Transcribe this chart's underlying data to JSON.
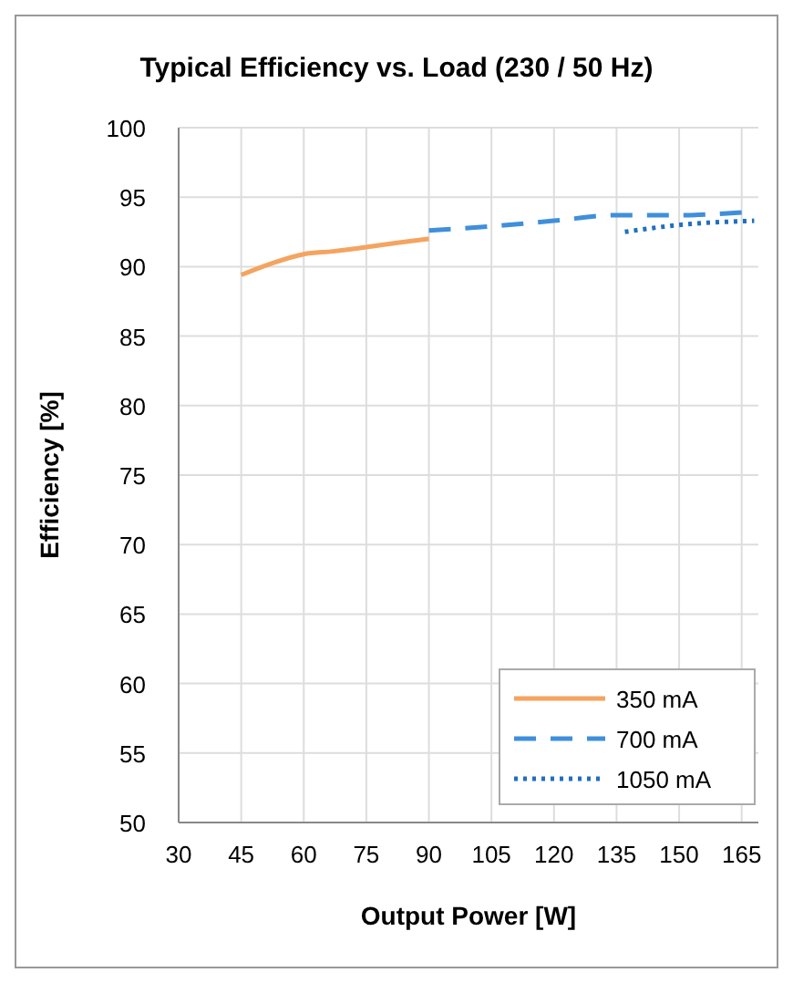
{
  "chart_data": {
    "type": "line",
    "title": "Typical Efficiency vs. Load (230 / 50 Hz)",
    "xlabel": "Output Power [W]",
    "ylabel": "Efficiency [%]",
    "xlim": [
      30,
      169
    ],
    "xticks": [
      30,
      45,
      60,
      75,
      90,
      105,
      120,
      135,
      150,
      165
    ],
    "ylim": [
      50,
      100
    ],
    "yticks": [
      50,
      55,
      60,
      65,
      70,
      75,
      80,
      85,
      90,
      95,
      100
    ],
    "grid": true,
    "legend": "bottom right",
    "marker": "none",
    "series": [
      {
        "name": "350 mA",
        "color": "#f4a460",
        "line_style": "solid",
        "x": [
          45,
          52,
          60,
          67,
          75,
          82,
          90
        ],
        "values": [
          89.4,
          90.2,
          90.9,
          91.1,
          91.4,
          91.7,
          92.0
        ]
      },
      {
        "name": "700 mA",
        "color": "#3f8fdc",
        "line_style": "dashed",
        "x": [
          90,
          105,
          120,
          135,
          150,
          165
        ],
        "values": [
          92.6,
          92.9,
          93.3,
          93.7,
          93.7,
          93.9
        ]
      },
      {
        "name": "1050 mA",
        "color": "#1f6fc0",
        "line_style": "dotted",
        "x": [
          137,
          150,
          168
        ],
        "values": [
          92.5,
          93.0,
          93.3
        ]
      }
    ]
  }
}
